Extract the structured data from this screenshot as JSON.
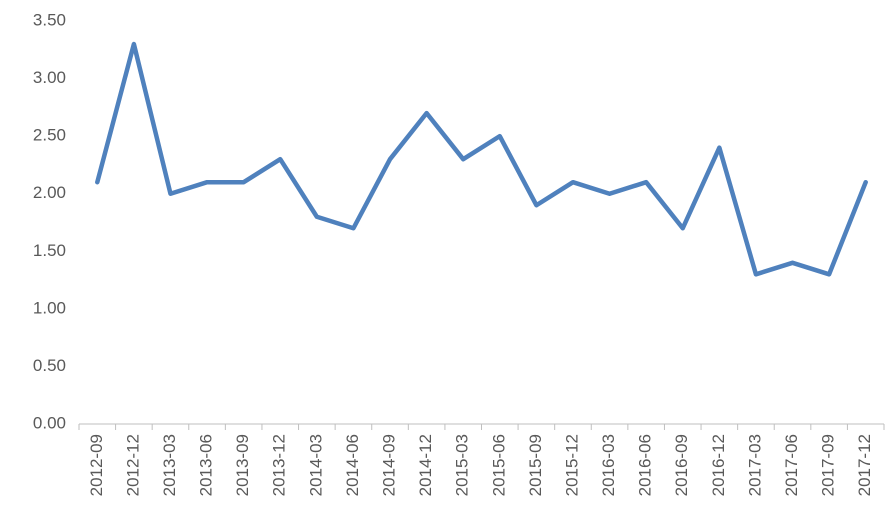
{
  "chart_data": {
    "type": "line",
    "categories": [
      "2012-09",
      "2012-12",
      "2013-03",
      "2013-06",
      "2013-09",
      "2013-12",
      "2014-03",
      "2014-06",
      "2014-09",
      "2014-12",
      "2015-03",
      "2015-06",
      "2015-09",
      "2015-12",
      "2016-03",
      "2016-06",
      "2016-09",
      "2016-12",
      "2017-03",
      "2017-06",
      "2017-09",
      "2017-12"
    ],
    "series": [
      {
        "color": "#4f81bd",
        "values": [
          2.1,
          3.3,
          2.0,
          2.1,
          2.1,
          2.3,
          1.8,
          1.7,
          2.3,
          2.7,
          2.3,
          2.5,
          1.9,
          2.1,
          2.0,
          2.1,
          1.7,
          2.4,
          1.3,
          1.4,
          1.3,
          2.1
        ]
      }
    ],
    "ylim": [
      0,
      3.5
    ],
    "yticks": [
      {
        "value": 0,
        "label": "0.00"
      },
      {
        "value": 0.5,
        "label": "0.50"
      },
      {
        "value": 1,
        "label": "1.00"
      },
      {
        "value": 1.5,
        "label": "1.50"
      },
      {
        "value": 2,
        "label": "2.00"
      },
      {
        "value": 2.5,
        "label": "2.50"
      },
      {
        "value": 3,
        "label": "3.00"
      },
      {
        "value": 3.5,
        "label": "3.50"
      }
    ],
    "grid": false
  }
}
